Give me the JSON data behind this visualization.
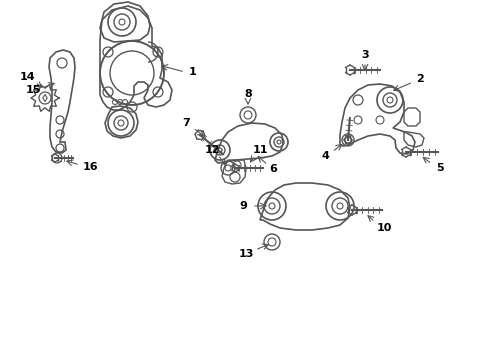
{
  "background_color": "#ffffff",
  "line_color": "#555555",
  "text_color": "#000000",
  "fig_width": 4.9,
  "fig_height": 3.6,
  "dpi": 100
}
